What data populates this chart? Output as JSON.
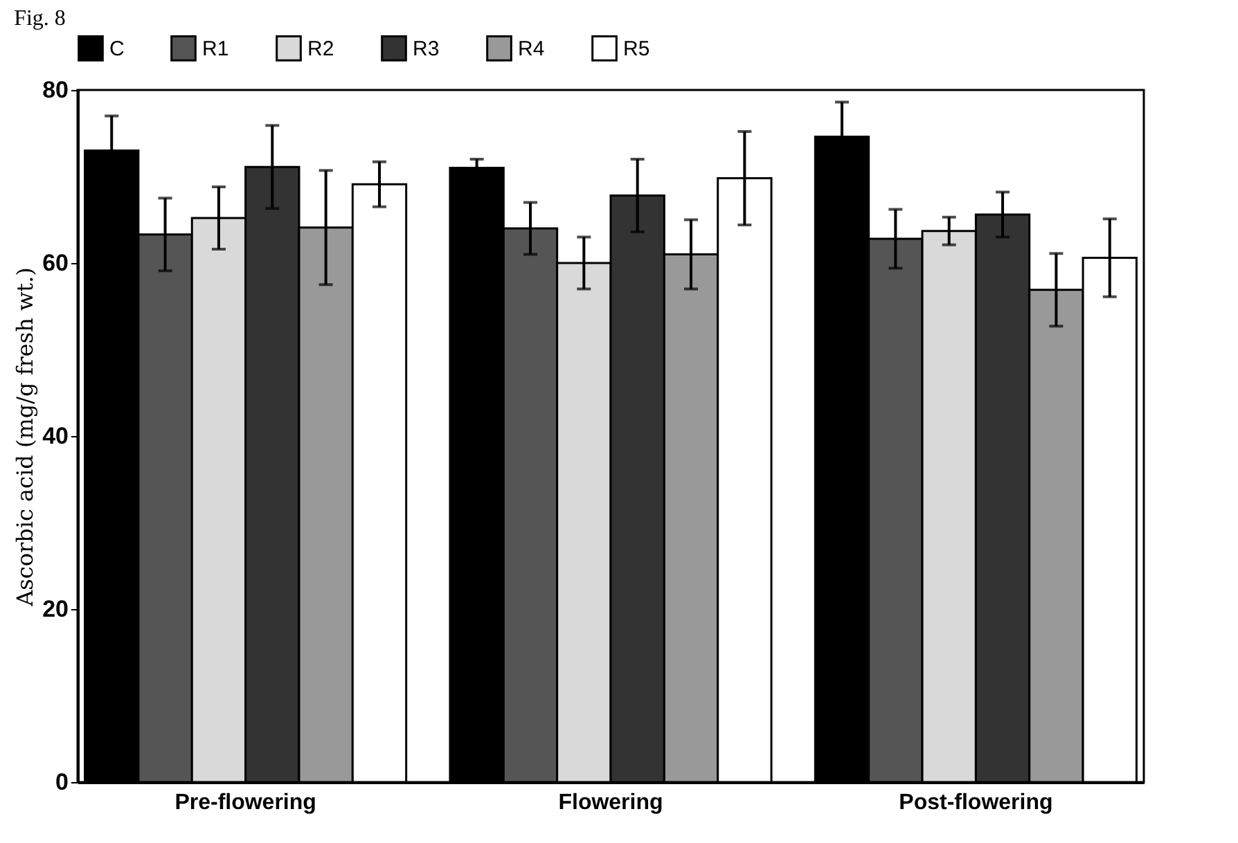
{
  "chart_data": {
    "type": "bar",
    "title": "Fig. 8",
    "ylabel": "Ascorbic acid (mg/g fresh wt.)",
    "categories": [
      "Pre-flowering",
      "Flowering",
      "Post-flowering"
    ],
    "series": [
      {
        "name": "C",
        "color": "#000000",
        "values": [
          73,
          71,
          74.6
        ],
        "errors": [
          4,
          1,
          4
        ]
      },
      {
        "name": "R1",
        "color": "#555555",
        "values": [
          63.3,
          64,
          62.8
        ],
        "errors": [
          4.2,
          3,
          3.4
        ]
      },
      {
        "name": "R2",
        "color": "#d9d9d9",
        "values": [
          65.2,
          60,
          63.7
        ],
        "errors": [
          3.6,
          3,
          1.6
        ]
      },
      {
        "name": "R3",
        "color": "#333333",
        "values": [
          71.1,
          67.8,
          65.6
        ],
        "errors": [
          4.8,
          4.2,
          2.6
        ]
      },
      {
        "name": "R4",
        "color": "#999999",
        "values": [
          64.1,
          61,
          56.9
        ],
        "errors": [
          6.6,
          4,
          4.2
        ]
      },
      {
        "name": "R5",
        "color": "#ffffff",
        "values": [
          69.1,
          69.8,
          60.6
        ],
        "errors": [
          2.6,
          5.4,
          4.5
        ]
      }
    ],
    "ylim": [
      0,
      80
    ],
    "yticks": [
      0,
      20,
      40,
      60,
      80
    ],
    "grid": false,
    "legend": "top"
  }
}
